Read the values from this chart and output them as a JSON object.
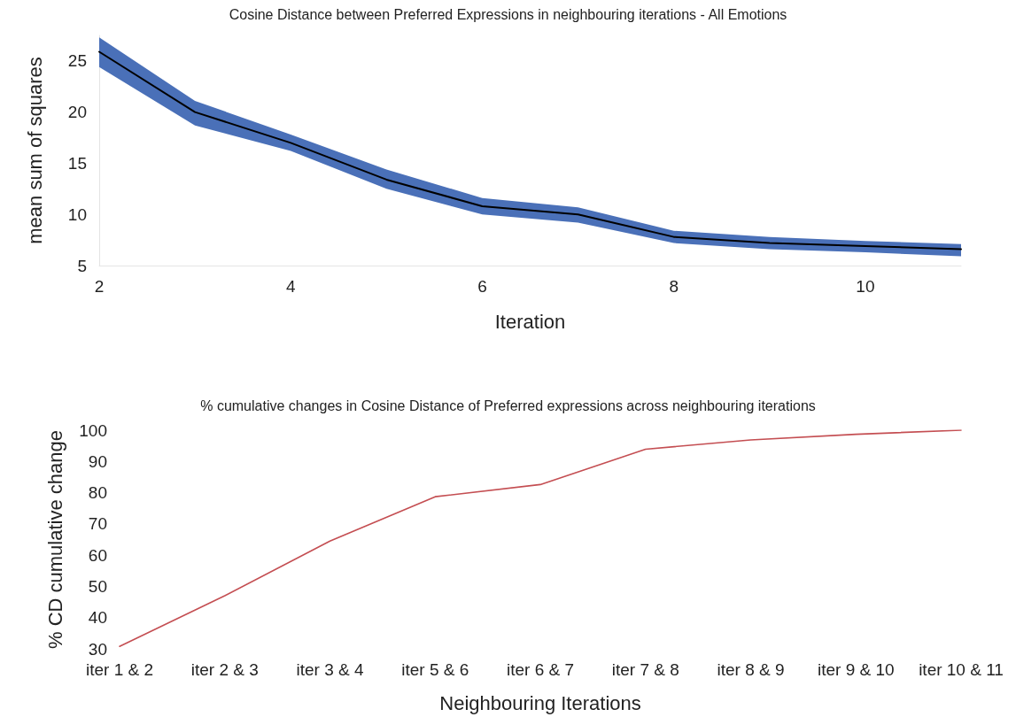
{
  "chart_data": [
    {
      "type": "line",
      "title": "Cosine Distance between Preferred Expressions in neighbouring iterations - All Emotions",
      "xlabel": "Iteration",
      "ylabel": "mean sum of squares",
      "x": [
        2,
        3,
        4,
        5,
        6,
        7,
        8,
        9,
        10,
        11
      ],
      "series": [
        {
          "color": "#000000",
          "values": [
            25.9,
            20.0,
            17.0,
            13.4,
            10.8,
            10.0,
            7.8,
            7.2,
            6.9,
            6.6
          ],
          "lower": [
            24.4,
            18.7,
            16.2,
            12.5,
            10.0,
            9.2,
            7.2,
            6.6,
            6.3,
            5.9
          ],
          "upper": [
            27.3,
            21.1,
            17.8,
            14.4,
            11.6,
            10.7,
            8.4,
            7.8,
            7.4,
            7.1
          ]
        }
      ],
      "xlim": [
        2,
        11
      ],
      "xticks": [
        2,
        4,
        6,
        8,
        10
      ],
      "ylim": [
        5,
        27.5
      ],
      "yticks": [
        5,
        10,
        15,
        20,
        25
      ],
      "grid": false,
      "marker": "none",
      "line_style": "solid"
    },
    {
      "type": "line",
      "title": "% cumulative changes in Cosine Distance of Preferred expressions across neighbouring iterations",
      "xlabel": "Neighbouring Iterations",
      "ylabel": "% CD cumulative change",
      "categories": [
        "iter 1 & 2",
        "iter 2 & 3",
        "iter 3 & 4",
        "iter 5 & 6",
        "iter 6 & 7",
        "iter 7 & 8",
        "iter 8 & 9",
        "iter 9 & 10",
        "iter 10 & 11"
      ],
      "series": [
        {
          "color": "#c44e52",
          "values": [
            30.8,
            47,
            64.5,
            78.7,
            82.6,
            93.9,
            96.9,
            98.7,
            100
          ]
        }
      ],
      "ylim": [
        30,
        100
      ],
      "yticks": [
        30,
        40,
        50,
        60,
        70,
        80,
        90,
        100
      ],
      "grid": false,
      "marker": "none",
      "line_style": "solid"
    }
  ]
}
